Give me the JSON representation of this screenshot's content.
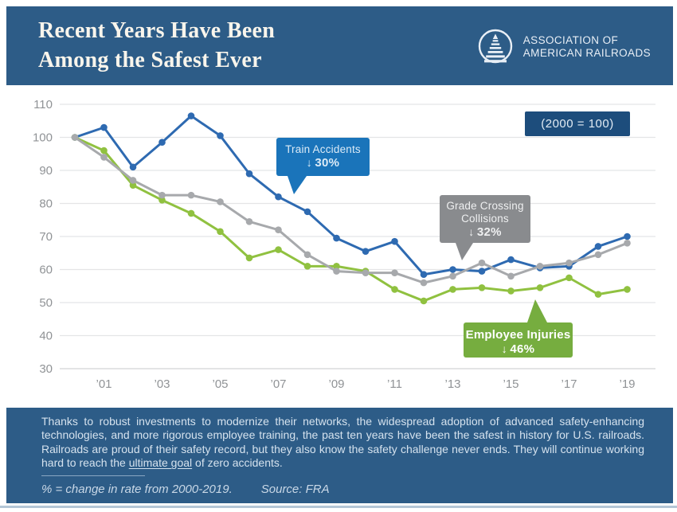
{
  "header": {
    "title_line1": "Recent Years Have Been",
    "title_line2": "Among the Safest Ever",
    "logo_line1": "ASSOCIATION OF",
    "logo_line2": "AMERICAN RAILROADS"
  },
  "callouts": {
    "index_badge": "(2000 = 100)",
    "train": {
      "line1": "Train Accidents",
      "arrow": "↓",
      "pct": "30%"
    },
    "grade": {
      "line1": "Grade Crossing",
      "line2": "Collisions",
      "arrow": "↓",
      "pct": "32%"
    },
    "employee": {
      "line1": "Employee Injuries",
      "arrow": "↓",
      "pct": "46%"
    }
  },
  "chart_data": {
    "type": "line",
    "title": "Recent Years Have Been Among the Safest Ever",
    "index_note": "(2000 = 100)",
    "x": [
      2000,
      2001,
      2002,
      2003,
      2004,
      2005,
      2006,
      2007,
      2008,
      2009,
      2010,
      2011,
      2012,
      2013,
      2014,
      2015,
      2016,
      2017,
      2018,
      2019
    ],
    "x_ticks": [
      {
        "year": 2001,
        "label": "’01"
      },
      {
        "year": 2003,
        "label": "’03"
      },
      {
        "year": 2005,
        "label": "’05"
      },
      {
        "year": 2007,
        "label": "’07"
      },
      {
        "year": 2009,
        "label": "’09"
      },
      {
        "year": 2011,
        "label": "’11"
      },
      {
        "year": 2013,
        "label": "’13"
      },
      {
        "year": 2015,
        "label": "’15"
      },
      {
        "year": 2017,
        "label": "’17"
      },
      {
        "year": 2019,
        "label": "’19"
      }
    ],
    "y_ticks": [
      30,
      40,
      50,
      60,
      70,
      80,
      90,
      100,
      110
    ],
    "ylim": [
      30,
      110
    ],
    "grid": "horizontal",
    "legend_position": "callouts-on-plot",
    "draw_order": [
      0,
      2,
      1
    ],
    "series": [
      {
        "name": "Train Accidents",
        "color": "#2e6ab1",
        "change_2000_2019": "-30%",
        "values": [
          100,
          103,
          91,
          98.5,
          106.5,
          100.5,
          89,
          82,
          77.5,
          69.5,
          65.5,
          68.5,
          58.5,
          60,
          59.5,
          63,
          60.5,
          61,
          67,
          70
        ]
      },
      {
        "name": "Grade Crossing Collisions",
        "color": "#a7a9ac",
        "change_2000_2019": "-32%",
        "values": [
          100,
          94,
          87,
          82.5,
          82.5,
          80.5,
          74.5,
          72,
          64.5,
          59.5,
          59,
          59,
          56,
          58,
          62,
          58,
          61,
          62,
          64.5,
          68
        ]
      },
      {
        "name": "Employee Injuries",
        "color": "#90c140",
        "change_2000_2019": "-46%",
        "values": [
          100,
          96,
          85.5,
          81,
          77,
          71.5,
          63.5,
          66,
          61,
          61,
          59.5,
          54,
          50.5,
          54,
          54.5,
          53.5,
          54.5,
          57.5,
          52.5,
          54
        ]
      }
    ]
  },
  "footer": {
    "text_before": "Thanks to robust investments to modernize their networks, the widespread adoption of advanced safety-enhancing technologies, and more rigorous employee training, the past ten years have been the safest in history for U.S. railroads. Railroads are proud of their safety record, but they also know the safety challenge never ends. They will continue working hard to reach the ",
    "underlined": "ultimate goal",
    "text_after": " of zero accidents.",
    "note": "% = change in rate from 2000-2019.",
    "source": "Source: FRA"
  },
  "colors": {
    "band_navy": "#2d5c87",
    "badge_navy": "#1d4d7c",
    "train_blue": "#2e6ab1",
    "train_callout_blue": "#1a74ba",
    "grade_gray": "#a7a9ac",
    "grade_callout_gray": "#898b8e",
    "employee_green": "#90c140",
    "employee_callout_green": "#76ad3f",
    "axis_text": "#909396",
    "gridline": "#e4e5e6"
  }
}
